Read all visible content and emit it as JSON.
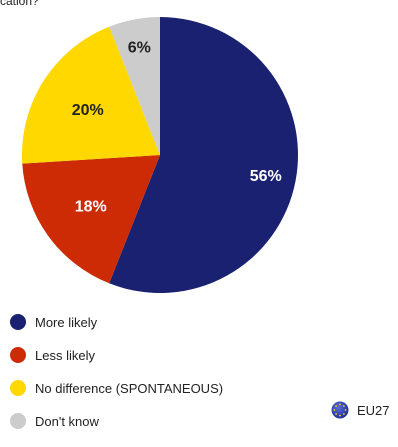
{
  "title_fragment": "cation?",
  "colors": {
    "More likely": "#1a2171",
    "Less likely": "#cc2b06",
    "No difference (SPONTANEOUS)": "#ffd800",
    "Don't know": "#cccccc",
    "eu_flag": "#1a2b9a"
  },
  "chart_data": {
    "type": "pie",
    "categories": [
      "More likely",
      "Less likely",
      "No difference (SPONTANEOUS)",
      "Don't know"
    ],
    "values": [
      56,
      18,
      20,
      6
    ],
    "data_labels": [
      "56%",
      "18%",
      "20%",
      "6%"
    ],
    "start": "12 o'clock, clockwise",
    "legend_placement": "bottom-left"
  },
  "legend": {
    "items": [
      {
        "label": "More likely"
      },
      {
        "label": "Less likely"
      },
      {
        "label": "No difference (SPONTANEOUS)"
      },
      {
        "label": "Don't know"
      }
    ]
  },
  "eu27": {
    "label": "EU27",
    "icon": "eu-flag-icon"
  }
}
